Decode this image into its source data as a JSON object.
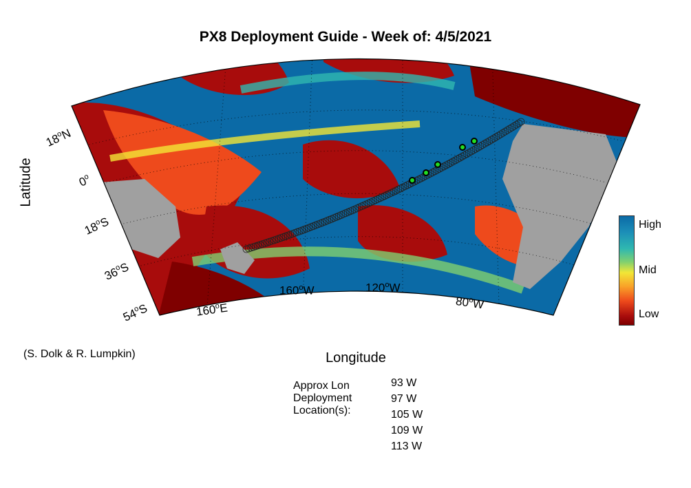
{
  "title": "PX8 Deployment Guide - Week of: 4/5/2021",
  "axes": {
    "ylabel": "Latitude",
    "xlabel": "Longitude"
  },
  "credit": "(S. Dolk & R. Lumpkin)",
  "lat_labels": [
    "18",
    "0",
    "18",
    "36",
    "54"
  ],
  "lat_suffix": [
    "N",
    "",
    "S",
    "S",
    "S"
  ],
  "lon_labels": [
    "160",
    "160",
    "120",
    "80"
  ],
  "lon_suffix": [
    "E",
    "W",
    "W",
    "W"
  ],
  "deg_symbol": "o",
  "colorbar": {
    "high": "High",
    "mid": "Mid",
    "low": "Low"
  },
  "deployment": {
    "heading_lines": [
      "Approx Lon",
      "Deployment",
      "Location(s):"
    ],
    "locations": [
      "93 W",
      "97 W",
      "105 W",
      "109 W",
      "113 W"
    ]
  },
  "colors": {
    "land": "#a0a0a0",
    "high": "#0b6aa6",
    "low": "#7f0000",
    "mid": "#f2e636",
    "marker": "#22dd22"
  }
}
